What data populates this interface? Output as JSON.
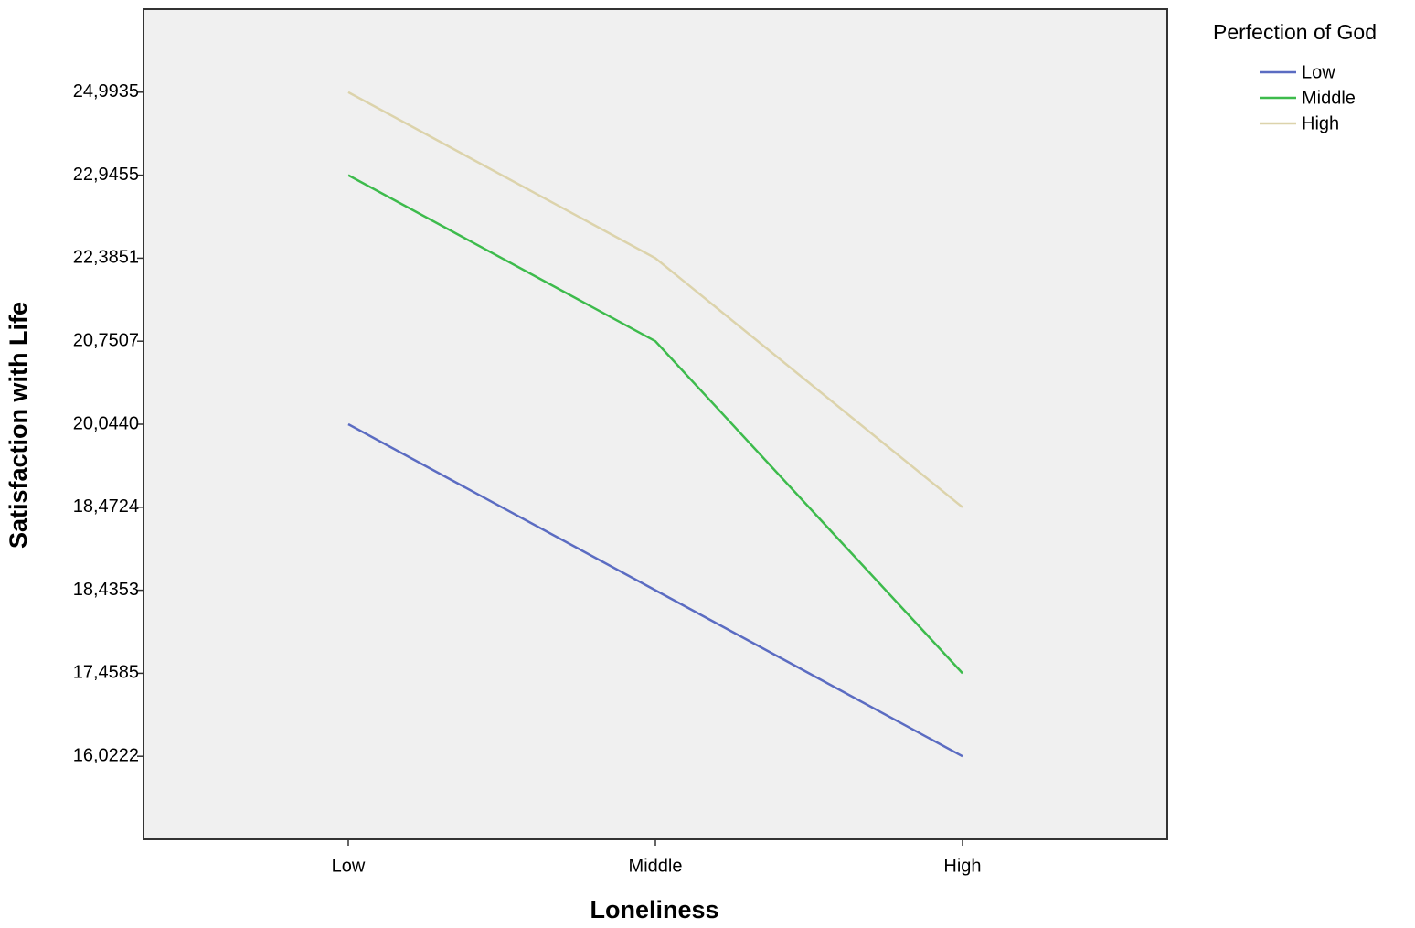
{
  "chart_data": {
    "type": "line",
    "x_label": "Loneliness",
    "y_label": "Satisfaction with Life",
    "legend_title": "Perfection of God",
    "legend_position": "right",
    "yscale": "ordinal",
    "categories": [
      "Low",
      "Middle",
      "High"
    ],
    "series": [
      {
        "name": "Low",
        "color": "#5b6cc2",
        "values": [
          20.044,
          18.4353,
          16.0222
        ]
      },
      {
        "name": "Middle",
        "color": "#3dbb4c",
        "values": [
          22.9455,
          20.7507,
          17.4585
        ]
      },
      {
        "name": "High",
        "color": "#dcd3ab",
        "values": [
          24.9935,
          22.3851,
          18.4724
        ]
      }
    ],
    "yticks": [
      {
        "value": 24.9935,
        "label": "24,9935"
      },
      {
        "value": 22.9455,
        "label": "22,9455"
      },
      {
        "value": 22.3851,
        "label": "22,3851"
      },
      {
        "value": 20.7507,
        "label": "20,7507"
      },
      {
        "value": 20.044,
        "label": "20,0440"
      },
      {
        "value": 18.4724,
        "label": "18,4724"
      },
      {
        "value": 18.4353,
        "label": "18,4353"
      },
      {
        "value": 17.4585,
        "label": "17,4585"
      },
      {
        "value": 16.0222,
        "label": "16,0222"
      }
    ]
  }
}
